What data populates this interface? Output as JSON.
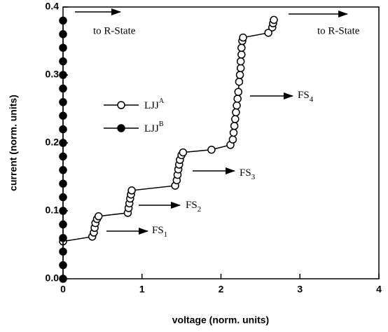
{
  "chart_data": {
    "type": "line",
    "xlabel": "voltage (norm. units)",
    "ylabel": "current (norm. units)",
    "xlim": [
      0,
      4
    ],
    "ylim": [
      0,
      0.4
    ],
    "xticks": [
      0,
      1,
      2,
      3,
      4
    ],
    "yticks": [
      {
        "value": 0,
        "label": "0.0"
      },
      0.1,
      0.2,
      0.3,
      0.4
    ],
    "series": [
      {
        "name": "LJJ",
        "superscript": "A",
        "color": "#000",
        "marker": "open",
        "x": [
          0,
          0.37,
          0.39,
          0.4,
          0.41,
          0.43,
          0.45,
          0.82,
          0.83,
          0.84,
          0.85,
          0.86,
          0.87,
          1.42,
          1.44,
          1.45,
          1.46,
          1.47,
          1.48,
          1.5,
          1.52,
          1.88,
          2.12,
          2.15,
          2.16,
          2.17,
          2.18,
          2.19,
          2.2,
          2.21,
          2.22,
          2.23,
          2.24,
          2.25,
          2.25,
          2.26,
          2.26,
          2.27,
          2.28,
          2.6,
          2.65,
          2.66,
          2.67
        ],
        "values": [
          0.055,
          0.062,
          0.068,
          0.075,
          0.082,
          0.088,
          0.092,
          0.097,
          0.104,
          0.111,
          0.118,
          0.124,
          0.13,
          0.137,
          0.145,
          0.153,
          0.161,
          0.168,
          0.175,
          0.182,
          0.186,
          0.19,
          0.197,
          0.205,
          0.215,
          0.225,
          0.235,
          0.245,
          0.255,
          0.265,
          0.275,
          0.29,
          0.3,
          0.31,
          0.32,
          0.33,
          0.34,
          0.35,
          0.355,
          0.362,
          0.37,
          0.376,
          0.381
        ]
      },
      {
        "name": "LJJ",
        "superscript": "B",
        "color": "#000",
        "marker": "filled",
        "x": [
          0,
          0,
          0,
          0,
          0,
          0,
          0,
          0,
          0,
          0,
          0,
          0,
          0,
          0,
          0,
          0,
          0,
          0,
          0,
          0
        ],
        "values": [
          0,
          0.02,
          0.04,
          0.06,
          0.08,
          0.1,
          0.12,
          0.14,
          0.16,
          0.18,
          0.2,
          0.22,
          0.24,
          0.26,
          0.28,
          0.3,
          0.32,
          0.34,
          0.36,
          0.38
        ]
      }
    ],
    "annotations": [
      {
        "text": "to R-State"
      },
      {
        "text": "to R-State"
      },
      {
        "text": "FS",
        "sub": "4"
      },
      {
        "text": "FS",
        "sub": "3"
      },
      {
        "text": "FS",
        "sub": "2"
      },
      {
        "text": "FS",
        "sub": "1"
      }
    ]
  }
}
